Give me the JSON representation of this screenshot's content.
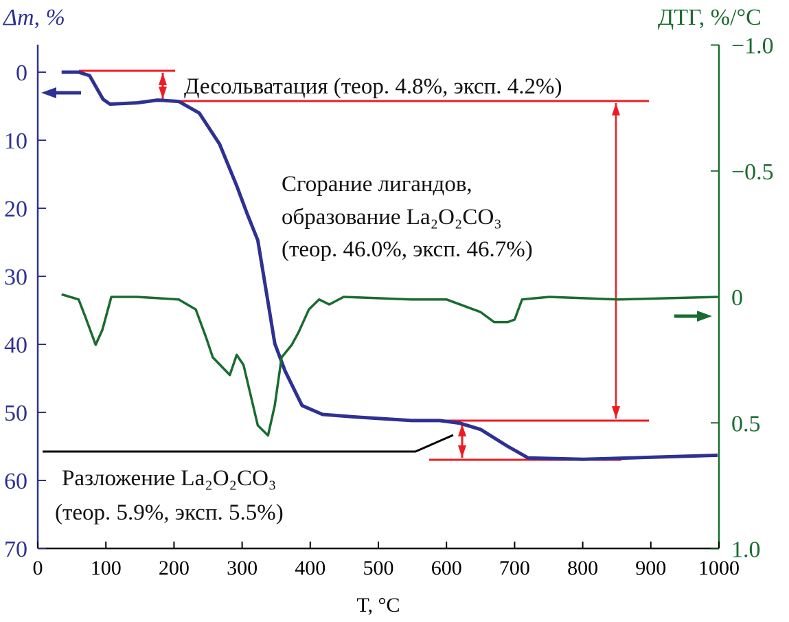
{
  "chart_data": {
    "type": "line",
    "xlabel": "T, °C",
    "ylabel_left": "Δm, %",
    "ylabel_right": "ДТГ, %/°C",
    "xlim": [
      0,
      1000
    ],
    "ylim_left": [
      70,
      -5
    ],
    "ylim_right": [
      1.0,
      -1.0
    ],
    "x_ticks": [
      "0",
      "100",
      "200",
      "300",
      "400",
      "500",
      "600",
      "700",
      "800",
      "900",
      "1000"
    ],
    "y_left_ticks": [
      "0",
      "10",
      "20",
      "30",
      "40",
      "50",
      "60",
      "70"
    ],
    "y_right_ticks": [
      "−1.0",
      "−0.5",
      "0",
      "0.5",
      "1.0"
    ],
    "grid": false,
    "colors": {
      "tg": "#2e3192",
      "dtg": "#1a6b30",
      "annotation": "#ed1c24",
      "leader": "#000000"
    },
    "series": [
      {
        "axis": "left",
        "x": [
          35,
          60,
          76,
          96,
          106,
          146,
          176,
          207,
          237,
          267,
          292,
          307,
          323,
          338,
          348,
          363,
          388,
          418,
          469,
          549,
          590,
          620,
          650,
          690,
          720,
          801,
          902,
          998
        ],
        "y": [
          0,
          0,
          0.5,
          4,
          4.7,
          4.5,
          4.1,
          4.3,
          6,
          10.6,
          16.7,
          20.7,
          24.7,
          33.8,
          39.9,
          43.9,
          49,
          50.3,
          50.7,
          51.2,
          51.2,
          51.6,
          52.5,
          55,
          56.7,
          56.9,
          56.6,
          56.3
        ]
      },
      {
        "axis": "right",
        "x": [
          35,
          60,
          70,
          85,
          95,
          108,
          146,
          207,
          232,
          247,
          257,
          282,
          292,
          302,
          323,
          338,
          348,
          358,
          373,
          383,
          398,
          413,
          428,
          449,
          549,
          600,
          630,
          650,
          670,
          690,
          700,
          711,
          751,
          852,
          998
        ],
        "y": [
          -0.01,
          0.01,
          0.08,
          0.19,
          0.13,
          0,
          0,
          0.01,
          0.05,
          0.16,
          0.24,
          0.31,
          0.23,
          0.27,
          0.51,
          0.55,
          0.43,
          0.24,
          0.19,
          0.14,
          0.05,
          0.01,
          0.03,
          0,
          0.01,
          0.01,
          0.04,
          0.06,
          0.1,
          0.1,
          0.09,
          0.01,
          0,
          0.01,
          0
        ]
      }
    ],
    "annotations": {
      "desolvation": "Десольватация (теор. 4.8%, эксп. 4.2%)",
      "combustion_1": "Сгорание лигандов,",
      "combustion_2": "образование La₂O₂CO₃",
      "combustion_3": "(теор. 46.0%, эксп. 46.7%)",
      "decomposition_1": "Разложение La₂O₂CO₃",
      "decomposition_2": "(теор. 5.9%, эксп. 5.5%)"
    }
  }
}
